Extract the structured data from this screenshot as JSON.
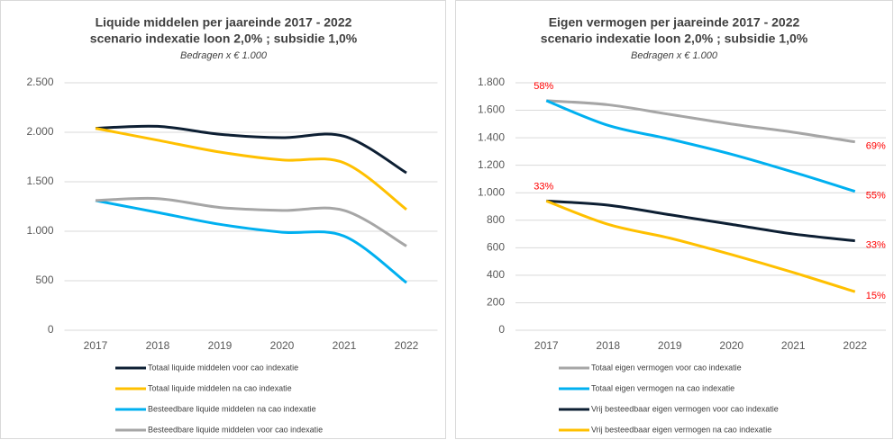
{
  "chart_data": [
    {
      "type": "line",
      "title": [
        "Liquide middelen per jaareinde 2017 - 2022",
        "scenario indexatie loon 2,0% ; subsidie 1,0%"
      ],
      "subtitle": "Bedragen x € 1.000",
      "categories": [
        "2017",
        "2018",
        "2019",
        "2020",
        "2021",
        "2022"
      ],
      "ylim": [
        0,
        2500
      ],
      "yticks": [
        0,
        500,
        {
          "value": 1000,
          "label": "1.000"
        },
        {
          "value": 1500,
          "label": "1.500"
        },
        {
          "value": 2000,
          "label": "2.000"
        },
        {
          "value": 2500,
          "label": "2.500"
        }
      ],
      "grid": true,
      "series": [
        {
          "name": "Totaal liquide middelen voor cao indexatie",
          "color": "#0d1f33",
          "values": [
            2040,
            2060,
            1980,
            1945,
            1960,
            1590
          ]
        },
        {
          "name": "Totaal liquide middelen na cao indexatie",
          "color": "#ffc000",
          "values": [
            2040,
            1920,
            1800,
            1720,
            1690,
            1220
          ]
        },
        {
          "name": "Besteedbare liquide middelen na cao indexatie",
          "color": "#00b0f0",
          "values": [
            1310,
            1190,
            1070,
            990,
            950,
            480
          ]
        },
        {
          "name": "Besteedbare liquide middelen voor cao indexatie",
          "color": "#a6a6a6",
          "values": [
            1310,
            1330,
            1240,
            1210,
            1210,
            850
          ]
        }
      ]
    },
    {
      "type": "line",
      "title": [
        "Eigen vermogen per jaareinde 2017 - 2022",
        "scenario indexatie loon 2,0% ; subsidie 1,0%"
      ],
      "subtitle": "Bedragen x € 1.000",
      "categories": [
        "2017",
        "2018",
        "2019",
        "2020",
        "2021",
        "2022"
      ],
      "ylim": [
        0,
        1800
      ],
      "yticks": [
        0,
        200,
        400,
        600,
        800,
        {
          "value": 1000,
          "label": "1.000"
        },
        {
          "value": 1200,
          "label": "1.200"
        },
        {
          "value": 1400,
          "label": "1.400"
        },
        {
          "value": 1600,
          "label": "1.600"
        },
        {
          "value": 1800,
          "label": "1.800"
        }
      ],
      "grid": true,
      "point_label_color": "#ff0000",
      "series": [
        {
          "name": "Totaal eigen vermogen voor cao indexatie",
          "color": "#a6a6a6",
          "values": [
            1670,
            1640,
            1570,
            1500,
            1440,
            1370
          ],
          "point_labels": [
            "58%",
            null,
            null,
            null,
            null,
            "69%"
          ]
        },
        {
          "name": "Totaal eigen vermogen na cao indexatie",
          "color": "#00b0f0",
          "values": [
            1670,
            1490,
            1390,
            1280,
            1150,
            1010
          ],
          "point_labels": [
            null,
            null,
            null,
            null,
            null,
            "55%"
          ]
        },
        {
          "name": "Vrij besteedbaar eigen vermogen voor cao indexatie",
          "color": "#0d1f33",
          "values": [
            940,
            910,
            840,
            770,
            700,
            650
          ],
          "point_labels": [
            "33%",
            null,
            null,
            null,
            null,
            "33%"
          ]
        },
        {
          "name": "Vrij besteedbaar eigen vermogen na cao indexatie",
          "color": "#ffc000",
          "values": [
            940,
            770,
            670,
            550,
            420,
            280
          ],
          "point_labels": [
            null,
            null,
            null,
            null,
            null,
            "15%"
          ]
        }
      ]
    }
  ]
}
